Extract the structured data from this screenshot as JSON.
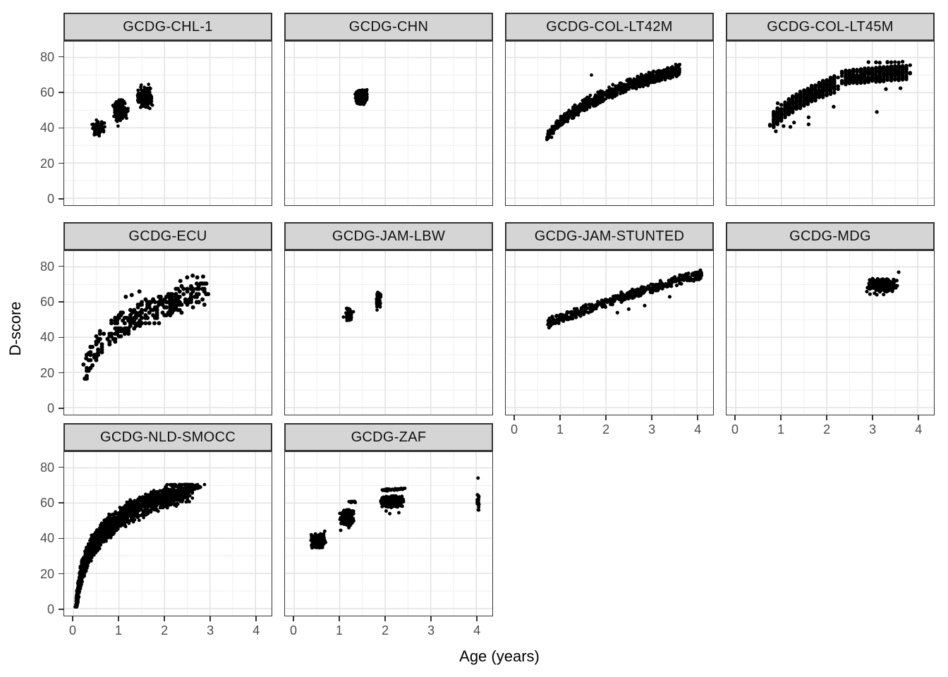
{
  "chart_data": {
    "type": "scatter",
    "title": "",
    "xlabel": "Age (years)",
    "ylabel": "D-score",
    "xlim": [
      -0.2,
      4.35
    ],
    "ylim": [
      -4,
      89
    ],
    "x_ticks": [
      0,
      1,
      2,
      3,
      4
    ],
    "y_ticks": [
      0,
      20,
      40,
      60,
      80
    ],
    "x_minor": [
      0.5,
      1.5,
      2.5,
      3.5
    ],
    "y_minor": [
      10,
      30,
      50,
      70
    ],
    "grid": true,
    "legend": "none",
    "point_color": "#000000",
    "strip_bg": "#D5D5D5",
    "panel_border": "#333333",
    "grid_major_color": "#E2E2E2",
    "grid_minor_color": "#EFEFEF",
    "tick_label_color": "#4D4D4D",
    "facets": [
      {
        "label": "GCDG-CHL-1",
        "row": 0,
        "col": 0,
        "axis_left": true,
        "axis_bottom": false,
        "r": 2.4,
        "clusters": [
          {
            "kind": "blob",
            "n": 75,
            "cx": 0.55,
            "cy": 40.0,
            "rx": 0.15,
            "ry": 4.8
          },
          {
            "kind": "blob",
            "n": 170,
            "cx": 1.02,
            "cy": 49.5,
            "rx": 0.18,
            "ry": 6.8
          },
          {
            "kind": "blob",
            "n": 170,
            "cx": 1.57,
            "cy": 57.5,
            "rx": 0.18,
            "ry": 7.2
          }
        ],
        "points": [
          [
            0.98,
            41
          ],
          [
            1.49,
            64.3
          ],
          [
            1.65,
            64.7
          ],
          [
            1.2,
            51
          ]
        ]
      },
      {
        "label": "GCDG-CHN",
        "row": 0,
        "col": 1,
        "axis_left": false,
        "axis_bottom": false,
        "r": 2.4,
        "clusters": [
          {
            "kind": "blob",
            "n": 280,
            "cx": 1.47,
            "cy": 57.5,
            "rx": 0.14,
            "ry": 4.8
          }
        ],
        "points": [
          [
            1.6,
            59
          ]
        ]
      },
      {
        "label": "GCDG-COL-LT42M",
        "row": 0,
        "col": 2,
        "axis_left": false,
        "axis_bottom": false,
        "r": 2.4,
        "clusters": [
          {
            "kind": "band",
            "n": 800,
            "x0": 0.68,
            "x1": 3.62,
            "fn": "log",
            "a": 43.2,
            "b": 23,
            "spread": 4,
            "xpow": 0.85
          }
        ],
        "points": [
          [
            1.68,
            70
          ]
        ]
      },
      {
        "label": "GCDG-COL-LT45M",
        "row": 0,
        "col": 3,
        "axis_left": false,
        "axis_bottom": false,
        "r": 2.7,
        "clusters": [
          {
            "kind": "band",
            "n": 620,
            "x0": 0.78,
            "x1": 2.23,
            "fn": "log",
            "a": 48.6,
            "b": 20.8,
            "spread": 4.8,
            "snapx": 0.0833,
            "uniform": true
          },
          {
            "kind": "band",
            "n": 480,
            "x0": 2.35,
            "x1": 3.8,
            "fn": "log",
            "a": 63.6,
            "b": 5.9,
            "spread": 4.2,
            "snapx": 0.0833,
            "uniform": true
          },
          {
            "kind": "band",
            "n": 12,
            "x0": 2.9,
            "x1": 3.78,
            "fn": "log",
            "a": 77.3,
            "b": 0,
            "spread": 0.3,
            "snapx": 0.0833,
            "uniform": true
          }
        ],
        "points": [
          [
            0.92,
            54
          ],
          [
            1.6,
            46
          ],
          [
            1.6,
            42
          ],
          [
            1.28,
            43
          ],
          [
            1.05,
            41
          ],
          [
            3.1,
            49
          ],
          [
            3.3,
            62
          ],
          [
            3.62,
            62.5
          ],
          [
            2.15,
            52
          ],
          [
            0.88,
            38
          ],
          [
            1.2,
            40.5
          ]
        ]
      },
      {
        "label": "GCDG-ECU",
        "row": 1,
        "col": 0,
        "axis_left": true,
        "axis_bottom": false,
        "r": 3.0,
        "clusters": [
          {
            "kind": "band",
            "n": 310,
            "x0": 0.25,
            "x1": 2.95,
            "fn": "log",
            "a": 46,
            "b": 18,
            "spread": 7,
            "snapx": 0.0417,
            "snapy": 1.5,
            "uniform": true,
            "ymax": 76
          }
        ],
        "points": [
          [
            0.22,
            24.5
          ],
          [
            0.28,
            28
          ],
          [
            0.34,
            31
          ],
          [
            1.78,
            48
          ],
          [
            1.88,
            48
          ],
          [
            1.15,
            63
          ],
          [
            1.28,
            64
          ],
          [
            2.5,
            74
          ],
          [
            2.62,
            75
          ],
          [
            2.72,
            74
          ],
          [
            2.85,
            74.5
          ],
          [
            2.35,
            72
          ],
          [
            1.45,
            66
          ]
        ]
      },
      {
        "label": "GCDG-JAM-LBW",
        "row": 1,
        "col": 1,
        "axis_left": false,
        "axis_bottom": false,
        "r": 2.4,
        "clusters": [
          {
            "kind": "blob",
            "n": 85,
            "cx": 1.2,
            "cy": 53.0,
            "rx": 0.07,
            "ry": 4.0
          },
          {
            "kind": "blob",
            "n": 95,
            "cx": 1.85,
            "cy": 61.5,
            "rx": 0.06,
            "ry": 5.0
          }
        ],
        "points": [
          [
            1.08,
            51.5
          ],
          [
            1.3,
            54.5
          ],
          [
            1.82,
            55.5
          ]
        ]
      },
      {
        "label": "GCDG-JAM-STUNTED",
        "row": 1,
        "col": 2,
        "axis_left": false,
        "axis_bottom": true,
        "r": 2.6,
        "clusters": [
          {
            "kind": "band",
            "n": 420,
            "x0": 0.72,
            "x1": 4.12,
            "fn": "quad",
            "a": 40.8,
            "b": 10.4,
            "c": -0.45,
            "spread": 3.2
          }
        ],
        "points": [
          [
            2.25,
            54
          ],
          [
            2.5,
            56
          ],
          [
            2.85,
            58
          ],
          [
            3.4,
            63
          ],
          [
            0.78,
            46.5
          ]
        ]
      },
      {
        "label": "GCDG-MDG",
        "row": 1,
        "col": 3,
        "axis_left": false,
        "axis_bottom": true,
        "r": 2.6,
        "clusters": [
          {
            "kind": "blob",
            "n": 300,
            "cx": 3.22,
            "cy": 69.5,
            "rx": 0.36,
            "ry": 4.0
          }
        ],
        "points": [
          [
            2.95,
            64.5
          ],
          [
            3.1,
            64.2
          ],
          [
            3.25,
            64.3
          ],
          [
            2.88,
            66
          ],
          [
            3.58,
            77
          ],
          [
            3.05,
            65
          ]
        ]
      },
      {
        "label": "GCDG-NLD-SMOCC",
        "row": 2,
        "col": 0,
        "axis_left": true,
        "axis_bottom": true,
        "r": 2.4,
        "clusters": [
          {
            "kind": "band",
            "n": 1700,
            "x0": 0.04,
            "x1": 2.62,
            "fn": "log",
            "a": 50.8,
            "b": 17.7,
            "spread": 7.5,
            "xpow": 1.55,
            "ymin": 1,
            "ymax": 70.5
          },
          {
            "kind": "band",
            "n": 50,
            "x0": 2.35,
            "x1": 2.83,
            "fn": "log",
            "a": 51.5,
            "b": 17.7,
            "spread": 1.5,
            "ymax": 70.5
          }
        ],
        "points": [
          [
            2.88,
            70.5
          ]
        ]
      },
      {
        "label": "GCDG-ZAF",
        "row": 2,
        "col": 1,
        "axis_left": false,
        "axis_bottom": true,
        "r": 2.5,
        "clusters": [
          {
            "kind": "blob",
            "n": 210,
            "cx": 0.53,
            "cy": 38.5,
            "rx": 0.17,
            "ry": 4.5
          },
          {
            "kind": "blob",
            "n": 240,
            "cx": 1.16,
            "cy": 51.8,
            "rx": 0.16,
            "ry": 4.8
          },
          {
            "kind": "blob",
            "n": 300,
            "cx": 2.15,
            "cy": 61.0,
            "rx": 0.27,
            "ry": 3.6
          },
          {
            "kind": "band",
            "n": 16,
            "x0": 1.2,
            "x1": 1.35,
            "fn": "quad",
            "a": 59.5,
            "b": 0.9,
            "c": 0,
            "spread": 0.6
          },
          {
            "kind": "band",
            "n": 45,
            "x0": 1.92,
            "x1": 2.44,
            "fn": "quad",
            "a": 63.8,
            "b": 1.8,
            "c": 0,
            "spread": 0.7
          },
          {
            "kind": "band",
            "n": 20,
            "x0": 4.02,
            "x1": 4.06,
            "fn": "quad",
            "a": 61.0,
            "b": 0,
            "c": 0,
            "spread": 5,
            "uniform": true
          }
        ],
        "points": [
          [
            4.04,
            74.2
          ],
          [
            1.02,
            44.5
          ],
          [
            1.2,
            46
          ],
          [
            2.02,
            55.5
          ],
          [
            2.3,
            54.5
          ],
          [
            0.67,
            44
          ],
          [
            2.1,
            54
          ]
        ]
      }
    ]
  }
}
